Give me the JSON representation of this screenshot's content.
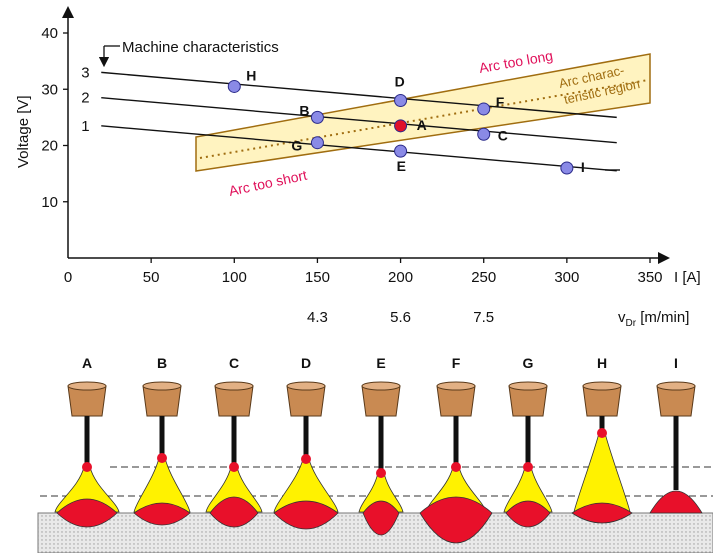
{
  "chart": {
    "ylabel": "Voltage [V]",
    "xlabel": "I [A]",
    "wire_label": "v",
    "wire_sub": "Dr",
    "wire_unit": " [m/min]",
    "machine_label": "Machine characteristics",
    "arc_too_long": "Arc too long",
    "arc_too_short": "Arc too short",
    "arc_region_1": "Arc charac-",
    "arc_region_2": "teristic region",
    "x_ticks": [
      "0",
      "50",
      "100",
      "150",
      "200",
      "250",
      "300",
      "350"
    ],
    "y_ticks": [
      "10",
      "20",
      "30",
      "40"
    ],
    "wire_ticks": [
      "4.3",
      "5.6",
      "7.5"
    ],
    "line_labels": [
      "1",
      "2",
      "3"
    ]
  },
  "chart_data": {
    "type": "scatter",
    "xlabel": "I [A]",
    "ylabel": "Voltage [V]",
    "xlim": [
      0,
      350
    ],
    "ylim": [
      0,
      40
    ],
    "points": [
      {
        "label": "A",
        "x": 200,
        "y": 23.5
      },
      {
        "label": "B",
        "x": 150,
        "y": 25
      },
      {
        "label": "C",
        "x": 250,
        "y": 22
      },
      {
        "label": "D",
        "x": 200,
        "y": 28
      },
      {
        "label": "E",
        "x": 200,
        "y": 19
      },
      {
        "label": "F",
        "x": 250,
        "y": 26.5
      },
      {
        "label": "G",
        "x": 150,
        "y": 20.5
      },
      {
        "label": "H",
        "x": 100,
        "y": 30.5
      },
      {
        "label": "I",
        "x": 300,
        "y": 16
      }
    ],
    "series": [
      {
        "name": "1",
        "x": [
          20,
          330
        ],
        "y": [
          23.5,
          15.5
        ]
      },
      {
        "name": "2",
        "x": [
          20,
          330
        ],
        "y": [
          28.5,
          20.5
        ]
      },
      {
        "name": "3",
        "x": [
          20,
          330
        ],
        "y": [
          33,
          25
        ]
      }
    ],
    "wire_feed": [
      {
        "x": 150,
        "value": 4.3
      },
      {
        "x": 200,
        "value": 5.6
      },
      {
        "x": 250,
        "value": 7.5
      }
    ]
  },
  "drops": [
    {
      "label": "A"
    },
    {
      "label": "B"
    },
    {
      "label": "C"
    },
    {
      "label": "D"
    },
    {
      "label": "E"
    },
    {
      "label": "F"
    },
    {
      "label": "G"
    },
    {
      "label": "H"
    },
    {
      "label": "I"
    }
  ],
  "colors": {
    "point_fill": "#8a8ae6",
    "point_red": "#e0102a",
    "torch": "#c98a52",
    "arc_yellow": "#fff200",
    "weld_red": "#e8102a",
    "band": "#a06d10",
    "band_fill": "#fff3c0"
  }
}
